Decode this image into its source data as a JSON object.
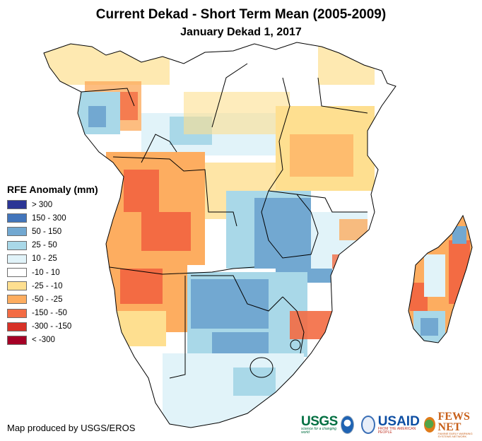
{
  "title": "Current Dekad - Short Term Mean (2005-2009)",
  "subtitle": "January Dekad 1, 2017",
  "legend": {
    "title": "RFE Anomaly (mm)",
    "items": [
      {
        "label": "> 300",
        "color": "#2b3595"
      },
      {
        "label": "150 - 300",
        "color": "#4275bb"
      },
      {
        "label": "50 - 150",
        "color": "#72a8d1"
      },
      {
        "label": "25 - 50",
        "color": "#a9d8e8"
      },
      {
        "label": "10 - 25",
        "color": "#e1f3f9"
      },
      {
        "label": "-10 - 10",
        "color": "#ffffff"
      },
      {
        "label": "-25 - -10",
        "color": "#fedf90"
      },
      {
        "label": "-50 - -25",
        "color": "#fdad60"
      },
      {
        "label": "-150 - -50",
        "color": "#f36b43"
      },
      {
        "label": "-300 - -150",
        "color": "#d73127"
      },
      {
        "label": "< -300",
        "color": "#a50026"
      }
    ]
  },
  "credit": "Map produced by USGS/EROS",
  "logos": {
    "usgs": "USGS",
    "usgs_tagline": "science for a changing world",
    "usaid": "USAID",
    "usaid_tagline": "FROM THE AMERICAN PEOPLE",
    "fews": "FEWS NET",
    "fews_tagline": "FAMINE EARLY WARNING SYSTEMS NETWORK"
  }
}
